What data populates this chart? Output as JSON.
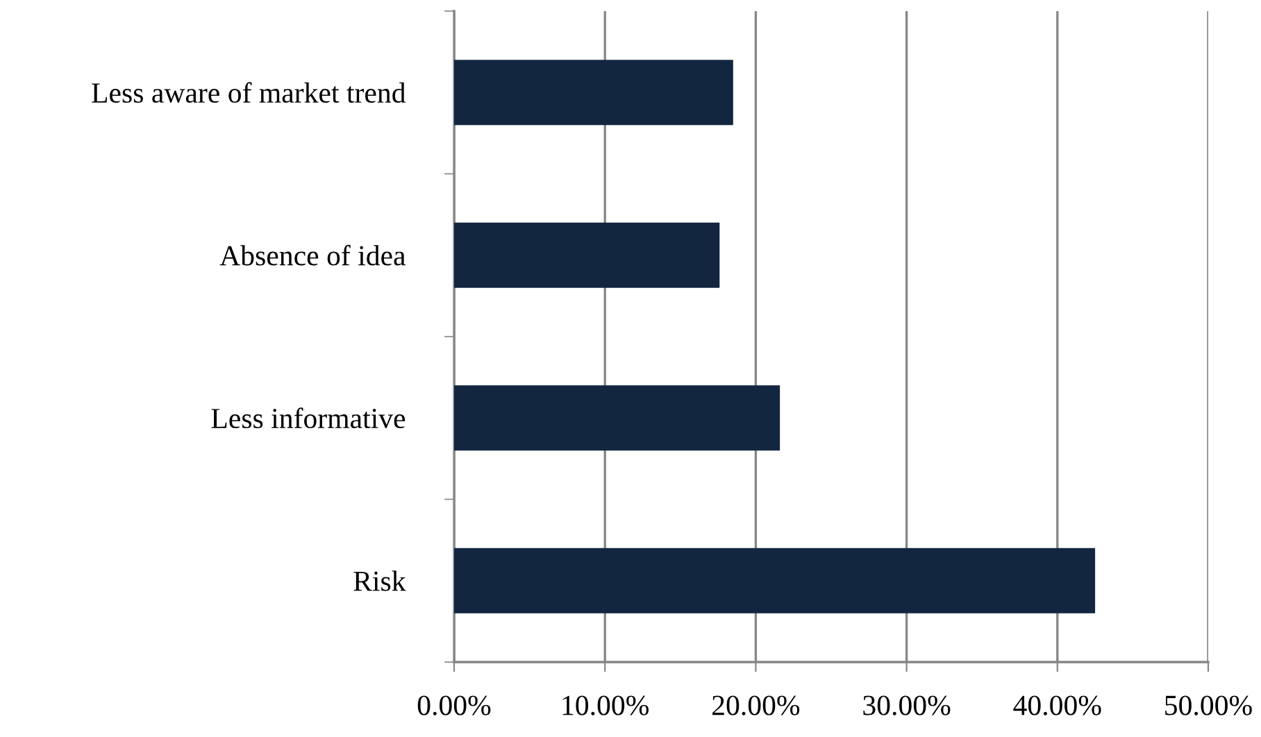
{
  "chart_data": {
    "type": "bar",
    "orientation": "horizontal",
    "categories": [
      "Less aware of market trend",
      "Absence of idea",
      "Less informative",
      "Risk"
    ],
    "values": [
      18.5,
      17.6,
      21.6,
      42.5
    ],
    "color": "#12263f",
    "xlim": [
      0,
      50
    ],
    "xticks": [
      {
        "value": 0,
        "label": "0.00%"
      },
      {
        "value": 10,
        "label": "10.00%"
      },
      {
        "value": 20,
        "label": "20.00%"
      },
      {
        "value": 30,
        "label": "30.00%"
      },
      {
        "value": 40,
        "label": "40.00%"
      },
      {
        "value": 50,
        "label": "50.00%"
      }
    ],
    "grid": "x"
  }
}
